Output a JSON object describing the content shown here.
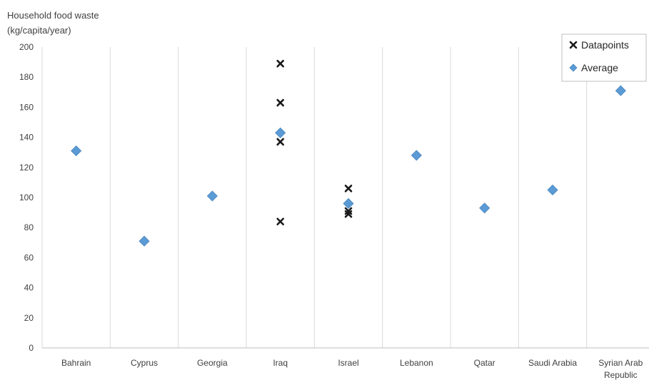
{
  "chart_data": {
    "type": "scatter",
    "ylabel_lines": [
      "Household food waste",
      "(kg/capita/year)"
    ],
    "categories": [
      "Bahrain",
      "Cyprus",
      "Georgia",
      "Iraq",
      "Israel",
      "Lebanon",
      "Qatar",
      "Saudi Arabia",
      "Syrian Arab Republic"
    ],
    "category_label_lines": [
      [
        "Bahrain"
      ],
      [
        "Cyprus"
      ],
      [
        "Georgia"
      ],
      [
        "Iraq"
      ],
      [
        "Israel"
      ],
      [
        "Lebanon"
      ],
      [
        "Qatar"
      ],
      [
        "Saudi Arabia"
      ],
      [
        "Syrian Arab",
        "Republic"
      ]
    ],
    "ylim": [
      0,
      200
    ],
    "yticks": [
      0,
      20,
      40,
      60,
      80,
      100,
      120,
      140,
      160,
      180,
      200
    ],
    "grid": "vertical category separators",
    "legend_position": "top-right",
    "series": [
      {
        "name": "Datapoints",
        "marker": "x",
        "color": "#1a1a1a",
        "points": [
          {
            "category": "Iraq",
            "y": 189
          },
          {
            "category": "Iraq",
            "y": 163
          },
          {
            "category": "Iraq",
            "y": 137
          },
          {
            "category": "Iraq",
            "y": 84
          },
          {
            "category": "Israel",
            "y": 106
          },
          {
            "category": "Israel",
            "y": 91
          },
          {
            "category": "Israel",
            "y": 89
          }
        ]
      },
      {
        "name": "Average",
        "marker": "diamond",
        "color": "#5b9bd5",
        "points": [
          {
            "category": "Bahrain",
            "y": 131
          },
          {
            "category": "Cyprus",
            "y": 71
          },
          {
            "category": "Georgia",
            "y": 101
          },
          {
            "category": "Iraq",
            "y": 143
          },
          {
            "category": "Israel",
            "y": 96
          },
          {
            "category": "Lebanon",
            "y": 128
          },
          {
            "category": "Qatar",
            "y": 93
          },
          {
            "category": "Saudi Arabia",
            "y": 105
          },
          {
            "category": "Syrian Arab Republic",
            "y": 171
          }
        ]
      }
    ]
  }
}
